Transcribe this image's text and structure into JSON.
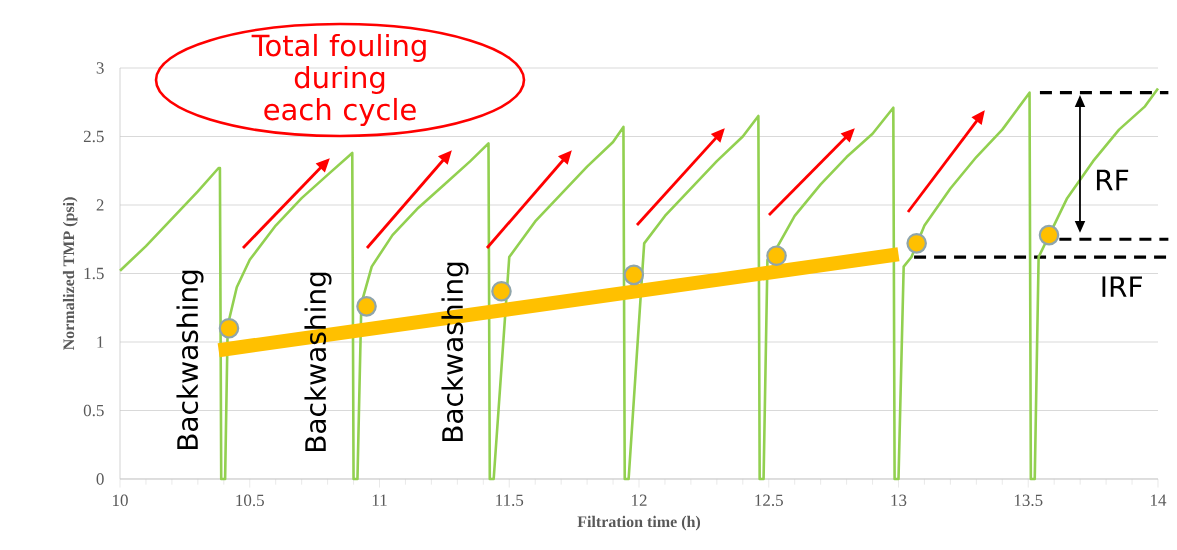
{
  "chart_data": {
    "type": "line",
    "xlabel": "Filtration time (h)",
    "ylabel": "Normalized TMP (psi)",
    "xlim": [
      10,
      14
    ],
    "ylim": [
      0,
      3
    ],
    "xticks": [
      10,
      10.5,
      11,
      11.5,
      12,
      12.5,
      13,
      13.5,
      14
    ],
    "yticks": [
      0,
      0.5,
      1,
      1.5,
      2,
      2.5,
      3
    ],
    "grid": "y",
    "series": [
      {
        "type": "line",
        "color": "#92d050",
        "marker": "none",
        "x": [
          10.0,
          10.1,
          10.2,
          10.3,
          10.38,
          10.385,
          10.39,
          10.405,
          10.415,
          10.45,
          10.5,
          10.6,
          10.7,
          10.8,
          10.895,
          10.9,
          10.915,
          10.93,
          10.97,
          11.05,
          11.15,
          11.25,
          11.35,
          11.42,
          11.425,
          11.44,
          11.5,
          11.6,
          11.7,
          11.8,
          11.9,
          11.94,
          11.945,
          11.96,
          11.975,
          12.02,
          12.1,
          12.2,
          12.3,
          12.4,
          12.46,
          12.465,
          12.48,
          12.495,
          12.52,
          12.6,
          12.7,
          12.8,
          12.9,
          12.98,
          12.985,
          13.0,
          13.02,
          13.05,
          13.1,
          13.2,
          13.3,
          13.4,
          13.505,
          13.51,
          13.525,
          13.54,
          13.58,
          13.65,
          13.75,
          13.85,
          13.95,
          14.0
        ],
        "values": [
          1.52,
          1.7,
          1.9,
          2.1,
          2.27,
          2.27,
          0,
          0,
          1.12,
          1.4,
          1.6,
          1.85,
          2.05,
          2.22,
          2.38,
          0,
          0,
          1.28,
          1.55,
          1.78,
          1.98,
          2.15,
          2.32,
          2.45,
          0,
          0,
          1.62,
          1.88,
          2.08,
          2.28,
          2.46,
          2.57,
          0,
          0,
          null,
          1.72,
          1.92,
          2.12,
          2.32,
          2.5,
          2.65,
          0,
          0,
          1.6,
          1.65,
          1.92,
          2.15,
          2.35,
          2.52,
          2.71,
          0,
          0,
          1.55,
          1.62,
          1.85,
          2.12,
          2.35,
          2.55,
          2.82,
          0,
          0,
          1.62,
          null,
          2.05,
          2.32,
          2.55,
          2.72,
          2.85
        ]
      },
      {
        "type": "line",
        "color": "#ffc000",
        "marker": "none",
        "x": [
          10.38,
          13.0
        ],
        "values": [
          0.94,
          1.64
        ]
      },
      {
        "type": "scatter",
        "color": "#ffc000",
        "marker": "circle",
        "x": [
          10.42,
          10.95,
          11.47,
          11.98,
          12.53,
          13.07,
          13.58
        ],
        "values": [
          1.1,
          1.26,
          1.37,
          1.49,
          1.63,
          1.72,
          1.78
        ]
      }
    ],
    "ref_lines": [
      {
        "axis": "y",
        "value": 2.82,
        "color": "#000000",
        "line_style": "dashed"
      },
      {
        "axis": "y",
        "value": 1.75,
        "color": "#000000",
        "line_style": "dashed"
      },
      {
        "axis": "y",
        "value": 1.62,
        "color": "#000000",
        "line_style": "dashed",
        "label": "IRF"
      }
    ],
    "annotations": [
      "Total fouling during each cycle",
      "Backwashing",
      "Backwashing",
      "Backwashing",
      "RF"
    ]
  }
}
